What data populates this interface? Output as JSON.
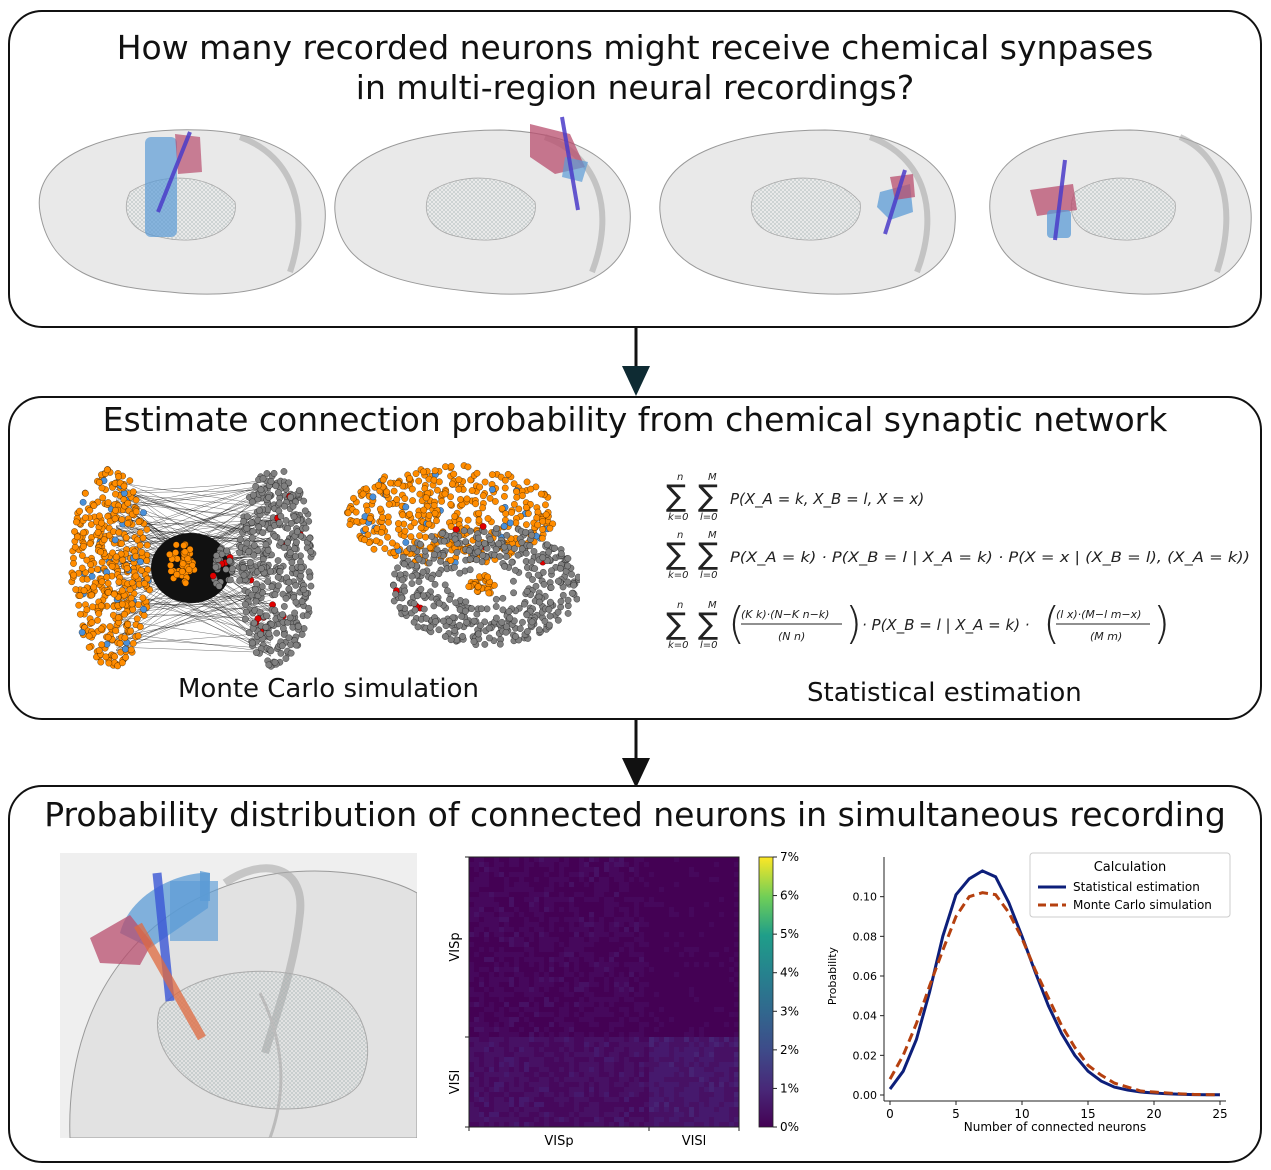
{
  "panels": {
    "top": {
      "title_line1": "How many recorded neurons might receive chemical synpases",
      "title_line2": "in multi-region neural recordings?"
    },
    "middle": {
      "title": "Estimate connection probability from chemical synaptic network",
      "caption_left": "Monte Carlo simulation",
      "caption_right": "Statistical estimation",
      "equations": {
        "line1": "P(X_A = k, X_B = l, X = x)",
        "line2": "P(X_A = k) · P(X_B = l | X_A = k) · P(X = x | (X_B = l), (X_A = k))",
        "line3": "· P(X_B = l | X_A = k) ·",
        "sum_upper_n": "n",
        "sum_upper_m": "M",
        "sum_lower_k": "k=0",
        "sum_lower_l": "l=0",
        "binom1_num": "(K k)·(N−K n−k)",
        "binom1_den": "(N n)",
        "binom2_num": "(l x)·(M−l m−x)",
        "binom2_den": "(M m)"
      }
    },
    "bottom": {
      "title": "Probability distribution of connected neurons in simultaneous recording"
    }
  },
  "heatmap": {
    "y_labels": [
      "VISp",
      "VISl"
    ],
    "x_labels": [
      "VISp",
      "VISl"
    ],
    "colorbar_ticks": [
      "7%",
      "6%",
      "5%",
      "4%",
      "3%",
      "2%",
      "1%",
      "0%"
    ],
    "colorbar_range": [
      0,
      7
    ]
  },
  "chart_data": {
    "type": "line",
    "xlabel": "Number of connected neurons",
    "ylabel": "Probability",
    "xlim": [
      0,
      25
    ],
    "ylim": [
      0,
      0.12
    ],
    "x_ticks": [
      0,
      5,
      10,
      15,
      20,
      25
    ],
    "y_ticks": [
      0.0,
      0.02,
      0.04,
      0.06,
      0.08,
      0.1
    ],
    "legend_title": "Calculation",
    "legend_position": "top-right",
    "x": [
      0,
      1,
      2,
      3,
      4,
      5,
      6,
      7,
      8,
      9,
      10,
      11,
      12,
      13,
      14,
      15,
      16,
      17,
      18,
      19,
      20,
      21,
      22,
      23,
      24,
      25
    ],
    "series": [
      {
        "name": "Statistical estimation",
        "color": "#0d1f7a",
        "dash": "solid",
        "values": [
          0.003,
          0.012,
          0.028,
          0.052,
          0.08,
          0.101,
          0.109,
          0.113,
          0.11,
          0.097,
          0.08,
          0.062,
          0.045,
          0.031,
          0.02,
          0.012,
          0.007,
          0.004,
          0.0025,
          0.0015,
          0.001,
          0.0006,
          0.0004,
          0.0002,
          0.0001,
          0.0001
        ]
      },
      {
        "name": "Monte Carlo simulation",
        "color": "#b5400f",
        "dash": "dashed",
        "values": [
          0.008,
          0.02,
          0.036,
          0.055,
          0.073,
          0.09,
          0.1,
          0.102,
          0.101,
          0.092,
          0.079,
          0.063,
          0.049,
          0.035,
          0.024,
          0.015,
          0.01,
          0.006,
          0.004,
          0.002,
          0.0015,
          0.001,
          0.0006,
          0.0003,
          0.0002,
          0.0001
        ]
      }
    ]
  },
  "colors": {
    "orange_nodes": "#ff8c00",
    "gray_nodes": "#808080",
    "red_nodes": "#e00000",
    "blue_nodes": "#4a90d9",
    "region_blue": "#5b9bd5",
    "region_pink": "#b84d6e",
    "probe": "#4b3cc9",
    "heatmap_low": "#440154",
    "heatmap_high": "#fde725"
  }
}
